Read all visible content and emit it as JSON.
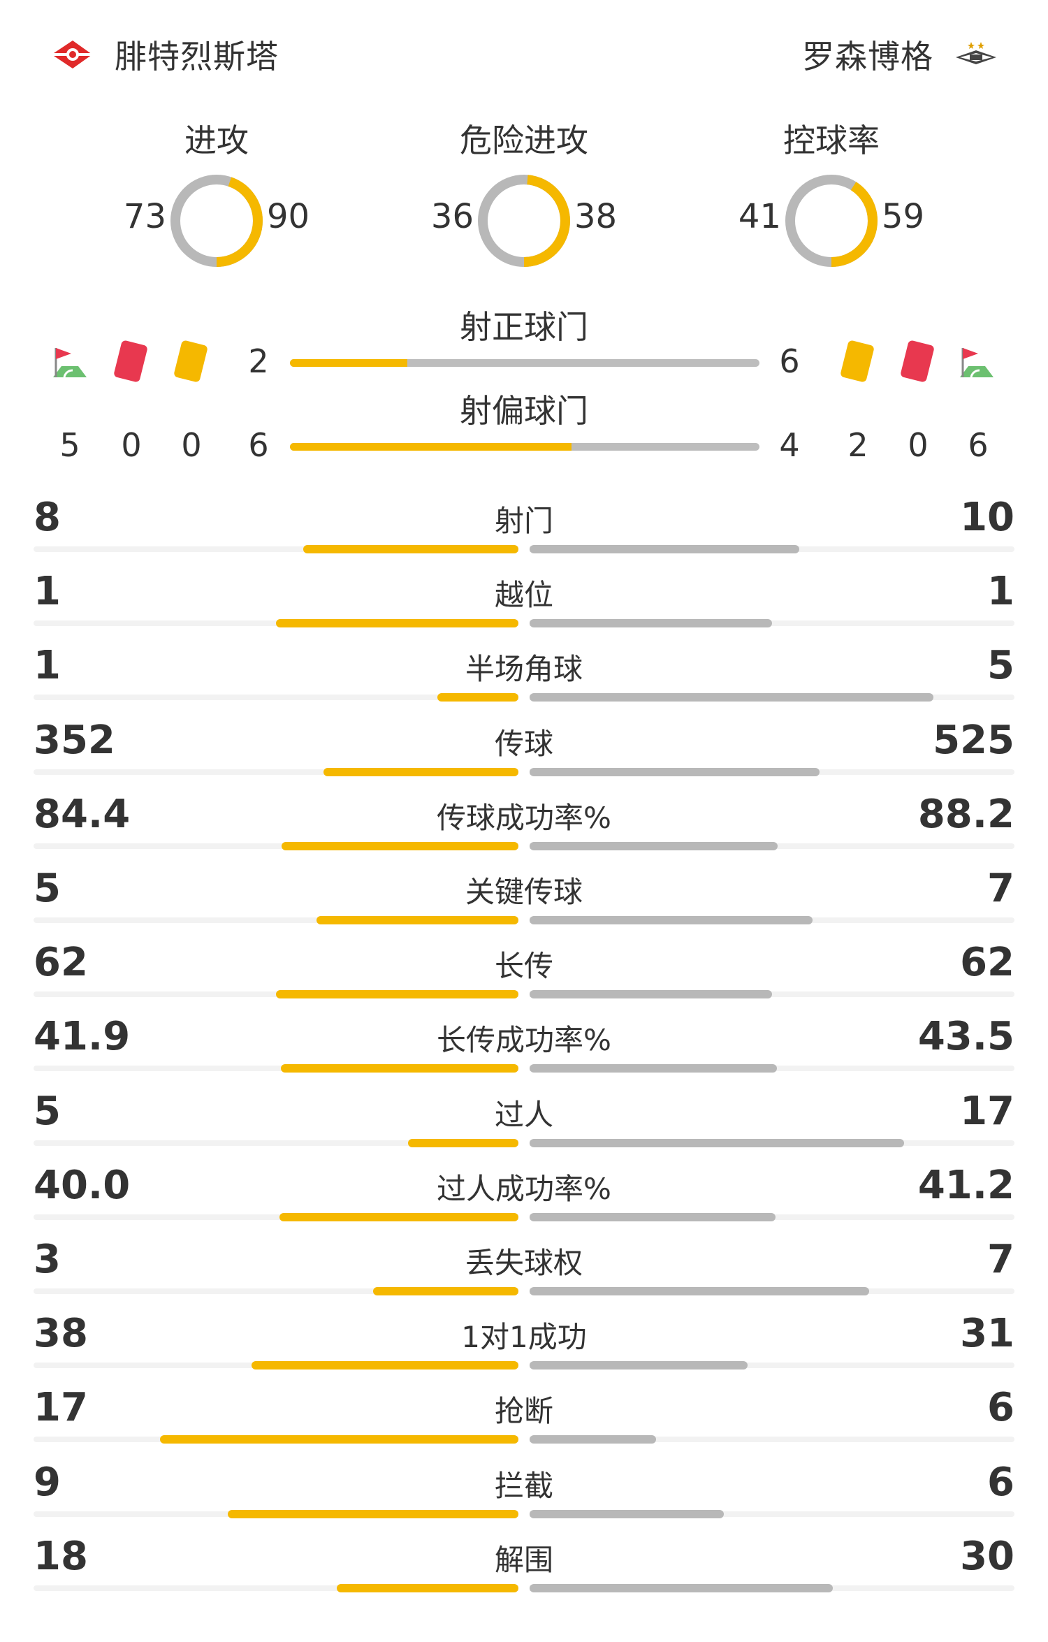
{
  "home": {
    "name": "腓特烈斯塔",
    "colors": {
      "logo": "#e02a2a"
    }
  },
  "away": {
    "name": "罗森博格",
    "colors": {
      "logo": "#333333"
    }
  },
  "colors": {
    "home_bar": "#f5b800",
    "away_bar": "#b8b8b8",
    "track": "#f2f2f2"
  },
  "donuts": [
    {
      "title": "进攻",
      "home": "73",
      "away": "90"
    },
    {
      "title": "危险进攻",
      "home": "36",
      "away": "38"
    },
    {
      "title": "控球率",
      "home": "41",
      "away": "59"
    }
  ],
  "shots_on": {
    "title": "射正球门",
    "home": "2",
    "away": "6"
  },
  "shots_off": {
    "title": "射偏球门",
    "home": "6",
    "away": "4"
  },
  "home_counts": {
    "corners": "5",
    "red_cards": "0",
    "yellow_cards": "0"
  },
  "away_counts": {
    "yellow_cards": "2",
    "red_cards": "0",
    "corners": "6"
  },
  "stats": [
    {
      "label": "射门",
      "home": "8",
      "away": "10"
    },
    {
      "label": "越位",
      "home": "1",
      "away": "1"
    },
    {
      "label": "半场角球",
      "home": "1",
      "away": "5"
    },
    {
      "label": "传球",
      "home": "352",
      "away": "525"
    },
    {
      "label": "传球成功率%",
      "home": "84.4",
      "away": "88.2"
    },
    {
      "label": "关键传球",
      "home": "5",
      "away": "7"
    },
    {
      "label": "长传",
      "home": "62",
      "away": "62"
    },
    {
      "label": "长传成功率%",
      "home": "41.9",
      "away": "43.5"
    },
    {
      "label": "过人",
      "home": "5",
      "away": "17"
    },
    {
      "label": "过人成功率%",
      "home": "40.0",
      "away": "41.2"
    },
    {
      "label": "丢失球权",
      "home": "3",
      "away": "7"
    },
    {
      "label": "1对1成功",
      "home": "38",
      "away": "31"
    },
    {
      "label": "抢断",
      "home": "17",
      "away": "6"
    },
    {
      "label": "拦截",
      "home": "9",
      "away": "6"
    },
    {
      "label": "解围",
      "home": "18",
      "away": "30"
    }
  ]
}
